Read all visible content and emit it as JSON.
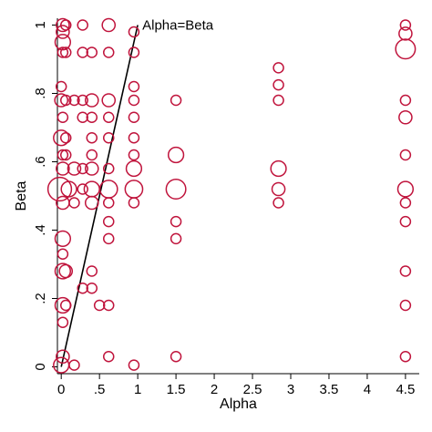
{
  "chart_data": {
    "type": "scatter",
    "title": "",
    "xlabel": "Alpha",
    "ylabel": "Beta",
    "xlim": [
      -0.05,
      4.68
    ],
    "ylim": [
      -0.02,
      1.02
    ],
    "xticks": [
      0,
      0.5,
      1,
      1.5,
      2,
      2.5,
      3,
      3.5,
      4,
      4.5
    ],
    "xtick_labels": [
      "0",
      ".5",
      "1",
      "1.5",
      "2",
      "2.5",
      "3",
      "3.5",
      "4",
      "4.5"
    ],
    "yticks": [
      0,
      0.2,
      0.4,
      0.6,
      0.8,
      1
    ],
    "ytick_labels": [
      "0",
      ".2",
      ".4",
      ".6",
      ".8",
      "1"
    ],
    "marker": "hollow circle, size proportional to frequency",
    "marker_color": "#c0143c",
    "reference_line": {
      "label": "Alpha=Beta",
      "points": [
        [
          0,
          0
        ],
        [
          1,
          1
        ]
      ],
      "color": "#000000"
    },
    "points": [
      {
        "x": 0.02,
        "y": 1.0,
        "s": 2
      },
      {
        "x": 0.02,
        "y": 0.98,
        "s": 2
      },
      {
        "x": 0.02,
        "y": 0.95,
        "s": 3
      },
      {
        "x": 0.02,
        "y": 0.92,
        "s": 1
      },
      {
        "x": 0.06,
        "y": 0.92,
        "s": 1
      },
      {
        "x": 0.06,
        "y": 1.0,
        "s": 1
      },
      {
        "x": 0.28,
        "y": 1.0,
        "s": 1
      },
      {
        "x": 0.62,
        "y": 1.0,
        "s": 2
      },
      {
        "x": 0.95,
        "y": 0.98,
        "s": 1
      },
      {
        "x": 0.28,
        "y": 0.92,
        "s": 1
      },
      {
        "x": 0.4,
        "y": 0.92,
        "s": 1
      },
      {
        "x": 0.62,
        "y": 0.92,
        "s": 1
      },
      {
        "x": 0.95,
        "y": 0.92,
        "s": 1
      },
      {
        "x": 0.0,
        "y": 0.82,
        "s": 1
      },
      {
        "x": 0.95,
        "y": 0.82,
        "s": 1
      },
      {
        "x": 0.0,
        "y": 0.78,
        "s": 2
      },
      {
        "x": 0.06,
        "y": 0.78,
        "s": 1
      },
      {
        "x": 0.17,
        "y": 0.78,
        "s": 1
      },
      {
        "x": 0.28,
        "y": 0.78,
        "s": 1
      },
      {
        "x": 0.4,
        "y": 0.78,
        "s": 2
      },
      {
        "x": 0.62,
        "y": 0.78,
        "s": 2
      },
      {
        "x": 0.95,
        "y": 0.78,
        "s": 1
      },
      {
        "x": 1.5,
        "y": 0.78,
        "s": 1
      },
      {
        "x": 2.84,
        "y": 0.78,
        "s": 1
      },
      {
        "x": 4.5,
        "y": 0.78,
        "s": 1
      },
      {
        "x": 2.84,
        "y": 0.875,
        "s": 1
      },
      {
        "x": 2.84,
        "y": 0.825,
        "s": 1
      },
      {
        "x": 0.02,
        "y": 0.73,
        "s": 1
      },
      {
        "x": 0.28,
        "y": 0.73,
        "s": 1
      },
      {
        "x": 0.4,
        "y": 0.73,
        "s": 1
      },
      {
        "x": 0.62,
        "y": 0.73,
        "s": 1
      },
      {
        "x": 0.95,
        "y": 0.73,
        "s": 1
      },
      {
        "x": 4.5,
        "y": 0.73,
        "s": 2
      },
      {
        "x": 0.0,
        "y": 0.67,
        "s": 3
      },
      {
        "x": 0.06,
        "y": 0.67,
        "s": 1
      },
      {
        "x": 0.4,
        "y": 0.67,
        "s": 1
      },
      {
        "x": 0.62,
        "y": 0.67,
        "s": 1
      },
      {
        "x": 0.95,
        "y": 0.67,
        "s": 1
      },
      {
        "x": 0.02,
        "y": 0.62,
        "s": 1
      },
      {
        "x": 0.06,
        "y": 0.62,
        "s": 1
      },
      {
        "x": 0.4,
        "y": 0.62,
        "s": 1
      },
      {
        "x": 0.95,
        "y": 0.62,
        "s": 1
      },
      {
        "x": 1.5,
        "y": 0.62,
        "s": 3
      },
      {
        "x": 4.5,
        "y": 0.62,
        "s": 1
      },
      {
        "x": 0.02,
        "y": 0.58,
        "s": 2
      },
      {
        "x": 0.17,
        "y": 0.58,
        "s": 2
      },
      {
        "x": 0.28,
        "y": 0.58,
        "s": 1
      },
      {
        "x": 0.4,
        "y": 0.58,
        "s": 2
      },
      {
        "x": 0.62,
        "y": 0.58,
        "s": 1
      },
      {
        "x": 0.95,
        "y": 0.58,
        "s": 3
      },
      {
        "x": 2.84,
        "y": 0.58,
        "s": 3
      },
      {
        "x": -0.02,
        "y": 0.52,
        "s": 7
      },
      {
        "x": 0.1,
        "y": 0.52,
        "s": 3
      },
      {
        "x": 0.28,
        "y": 0.52,
        "s": 1
      },
      {
        "x": 0.4,
        "y": 0.52,
        "s": 3
      },
      {
        "x": 0.62,
        "y": 0.52,
        "s": 4
      },
      {
        "x": 0.95,
        "y": 0.52,
        "s": 4
      },
      {
        "x": 1.5,
        "y": 0.52,
        "s": 5
      },
      {
        "x": 2.84,
        "y": 0.52,
        "s": 2
      },
      {
        "x": 4.5,
        "y": 0.52,
        "s": 3
      },
      {
        "x": 0.02,
        "y": 0.48,
        "s": 2
      },
      {
        "x": 0.17,
        "y": 0.48,
        "s": 1
      },
      {
        "x": 0.4,
        "y": 0.48,
        "s": 2
      },
      {
        "x": 0.62,
        "y": 0.48,
        "s": 1
      },
      {
        "x": 0.95,
        "y": 0.48,
        "s": 1
      },
      {
        "x": 2.84,
        "y": 0.48,
        "s": 1
      },
      {
        "x": 4.5,
        "y": 0.48,
        "s": 1
      },
      {
        "x": 0.62,
        "y": 0.425,
        "s": 1
      },
      {
        "x": 1.5,
        "y": 0.425,
        "s": 1
      },
      {
        "x": 4.5,
        "y": 0.425,
        "s": 1
      },
      {
        "x": 0.02,
        "y": 0.375,
        "s": 3
      },
      {
        "x": 0.62,
        "y": 0.375,
        "s": 1
      },
      {
        "x": 1.5,
        "y": 0.375,
        "s": 1
      },
      {
        "x": 0.02,
        "y": 0.33,
        "s": 1
      },
      {
        "x": 0.02,
        "y": 0.28,
        "s": 3
      },
      {
        "x": 0.06,
        "y": 0.28,
        "s": 2
      },
      {
        "x": 0.4,
        "y": 0.28,
        "s": 1
      },
      {
        "x": 4.5,
        "y": 0.28,
        "s": 1
      },
      {
        "x": 0.28,
        "y": 0.23,
        "s": 1
      },
      {
        "x": 0.4,
        "y": 0.23,
        "s": 1
      },
      {
        "x": 0.02,
        "y": 0.18,
        "s": 3
      },
      {
        "x": 0.06,
        "y": 0.18,
        "s": 1
      },
      {
        "x": 0.5,
        "y": 0.18,
        "s": 1
      },
      {
        "x": 0.62,
        "y": 0.18,
        "s": 1
      },
      {
        "x": 4.5,
        "y": 0.18,
        "s": 1
      },
      {
        "x": 0.02,
        "y": 0.13,
        "s": 1
      },
      {
        "x": 0.02,
        "y": 0.03,
        "s": 2
      },
      {
        "x": 0.62,
        "y": 0.03,
        "s": 1
      },
      {
        "x": 1.5,
        "y": 0.03,
        "s": 1
      },
      {
        "x": 4.5,
        "y": 0.03,
        "s": 1
      },
      {
        "x": 0.0,
        "y": 0.005,
        "s": 3
      },
      {
        "x": 0.17,
        "y": 0.005,
        "s": 1
      },
      {
        "x": 0.95,
        "y": 0.005,
        "s": 1
      },
      {
        "x": 4.5,
        "y": 0.93,
        "s": 5
      },
      {
        "x": 4.5,
        "y": 0.975,
        "s": 2
      },
      {
        "x": 4.5,
        "y": 1.0,
        "s": 1
      }
    ]
  }
}
